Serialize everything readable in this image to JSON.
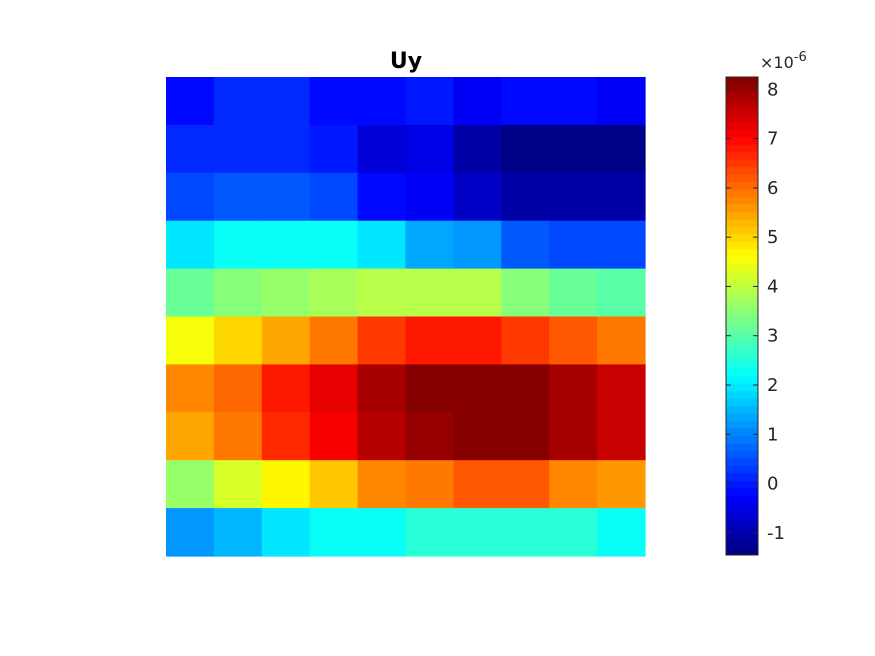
{
  "chart_data": {
    "type": "heatmap",
    "title": "Uy",
    "xlabel": "",
    "ylabel": "",
    "colormap": "jet",
    "colorbar": {
      "clim": [
        -1.45,
        8.25
      ],
      "ticks": [
        -1,
        0,
        1,
        2,
        3,
        4,
        5,
        6,
        7,
        8
      ],
      "tick_labels": [
        "-1",
        "0",
        "1",
        "2",
        "3",
        "4",
        "5",
        "6",
        "7",
        "8"
      ],
      "exponent_times": "×",
      "exponent_base": "10",
      "exponent_power": "-6"
    },
    "grid_rows": 10,
    "grid_cols": 10,
    "values": [
      [
        -0.1,
        0.1,
        0.1,
        -0.1,
        -0.1,
        0.0,
        -0.3,
        -0.2,
        -0.2,
        -0.3
      ],
      [
        0.2,
        0.2,
        0.2,
        0.0,
        -0.6,
        -0.5,
        -1.0,
        -1.3,
        -1.3,
        -1.3
      ],
      [
        0.4,
        0.6,
        0.6,
        0.4,
        -0.1,
        -0.3,
        -0.7,
        -1.1,
        -1.1,
        -1.1
      ],
      [
        2.0,
        2.2,
        2.2,
        2.2,
        1.9,
        1.3,
        1.2,
        0.6,
        0.5,
        0.5
      ],
      [
        3.1,
        3.4,
        3.6,
        3.8,
        4.0,
        3.9,
        3.9,
        3.4,
        3.2,
        3.0
      ],
      [
        4.6,
        4.95,
        5.5,
        5.9,
        6.55,
        6.75,
        6.75,
        6.55,
        6.25,
        5.9
      ],
      [
        5.75,
        6.1,
        6.75,
        7.25,
        7.8,
        8.1,
        8.1,
        8.1,
        7.85,
        7.55
      ],
      [
        5.5,
        5.9,
        6.6,
        7.1,
        7.75,
        8.0,
        8.1,
        8.1,
        7.85,
        7.55
      ],
      [
        3.65,
        4.25,
        4.75,
        5.15,
        5.75,
        5.95,
        6.2,
        6.25,
        5.8,
        5.6
      ],
      [
        1.25,
        1.55,
        1.95,
        2.2,
        2.25,
        2.5,
        2.5,
        2.5,
        2.5,
        2.3
      ]
    ]
  }
}
